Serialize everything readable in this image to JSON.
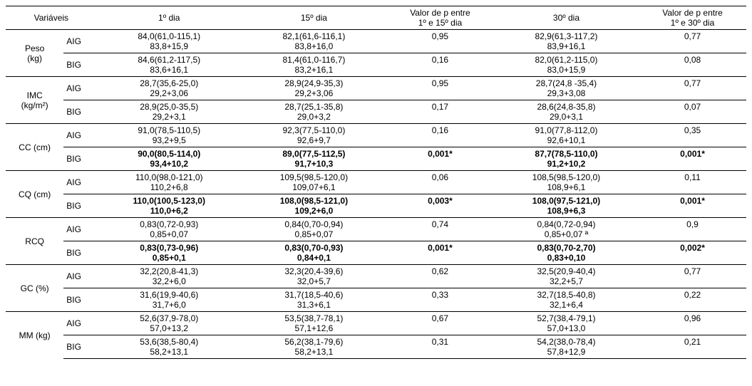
{
  "headers": {
    "variaveis": "Variáveis",
    "dia1": "1º dia",
    "dia15": "15º dia",
    "p1_15_l1": "Valor de p entre",
    "p1_15_l2": "1º e 15º dia",
    "dia30": "30º dia",
    "p1_30_l1": "Valor de p entre",
    "p1_30_l2": "1º e 30º dia"
  },
  "vars": [
    {
      "label_l1": "Peso",
      "label_l2": "(kg)",
      "rows": [
        {
          "group": "AIG",
          "d1_l1": "84,0(61,0-115,1)",
          "d1_l2": "83,8+15,9",
          "d15_l1": "82,1(61,6-116,1)",
          "d15_l2": "83,8+16,0",
          "p15": "0,95",
          "d30_l1": "82,9(61,3-117,2)",
          "d30_l2": "83,9+16,1",
          "p30": "0,77",
          "bold": false
        },
        {
          "group": "BIG",
          "d1_l1": "84,6(61,2-117,5)",
          "d1_l2": "83,6+16,1",
          "d15_l1": "81,4(61,0-116,7)",
          "d15_l2": "83,2+16,1",
          "p15": "0,16",
          "d30_l1": "82,0(61,2-115,0)",
          "d30_l2": "83,0+15,9",
          "p30": "0,08",
          "bold": false
        }
      ]
    },
    {
      "label_l1": "IMC",
      "label_l2": "(kg/m²)",
      "rows": [
        {
          "group": "AIG",
          "d1_l1": "28,7(35,6-25,0)",
          "d1_l2": "29,2+3,06",
          "d15_l1": "28,9(24,9-35,3)",
          "d15_l2": "29,2+3,06",
          "p15": "0,95",
          "d30_l1": "28,7(24,8 -35,4)",
          "d30_l2": "29,3+3,08",
          "p30": "0,77",
          "bold": false
        },
        {
          "group": "BIG",
          "d1_l1": "28,9(25,0-35,5)",
          "d1_l2": "29,2+3,1",
          "d15_l1": "28,7(25,1-35,8)",
          "d15_l2": "29,0+3,2",
          "p15": "0,17",
          "d30_l1": "28,6(24,8-35,8)",
          "d30_l2": "29,0+3,1",
          "p30": "0,07",
          "bold": false
        }
      ]
    },
    {
      "label_l1": "CC (cm)",
      "label_l2": "",
      "rows": [
        {
          "group": "AIG",
          "d1_l1": "91,0(78,5-110,5)",
          "d1_l2": "93,2+9,5",
          "d15_l1": "92,3(77,5-110,0)",
          "d15_l2": "92,6+9,7",
          "p15": "0,16",
          "d30_l1": "91,0(77,8-112,0)",
          "d30_l2": "92,6+10,1",
          "p30": "0,35",
          "bold": false
        },
        {
          "group": "BIG",
          "d1_l1": "90,0(80,5-114,0)",
          "d1_l2": "93,4+10,2",
          "d15_l1": "89,0(77,5-112,5)",
          "d15_l2": "91,7+10,3",
          "p15": "0,001*",
          "d30_l1": "87,7(78,5-110,0)",
          "d30_l2": "91,2+10,2",
          "p30": "0,001*",
          "bold": true
        }
      ]
    },
    {
      "label_l1": "CQ (cm)",
      "label_l2": "",
      "rows": [
        {
          "group": "AIG",
          "d1_l1": "110,0(98,0-121,0)",
          "d1_l2": "110,2+6,8",
          "d15_l1": "109,5(98,5-120,0)",
          "d15_l2": "109,07+6,1",
          "p15": "0,06",
          "d30_l1": "108,5(98,5-120,0)",
          "d30_l2": "108,9+6,1",
          "p30": "0,11",
          "bold": false
        },
        {
          "group": "BIG",
          "d1_l1": "110,0(100,5-123,0)",
          "d1_l2": "110,0+6,2",
          "d15_l1": "108,0(98,5-121,0)",
          "d15_l2": "109,2+6,0",
          "p15": "0,003*",
          "d30_l1": "108,0(97,5-121,0)",
          "d30_l2": "108,9+6,3",
          "p30": "0,001*",
          "bold": true
        }
      ]
    },
    {
      "label_l1": "RCQ",
      "label_l2": "",
      "rows": [
        {
          "group": "AIG",
          "d1_l1": "0,83(0,72-0,93)",
          "d1_l2": "0,85+0,07",
          "d15_l1": "0,84(0,70-0,94)",
          "d15_l2": "0,85+0,07",
          "p15": "0,74",
          "d30_l1": "0,84(0,72-0,94)",
          "d30_l2": "0,85+0,07 ª",
          "p30": "0,9",
          "bold": false
        },
        {
          "group": "BIG",
          "d1_l1": "0,83(0,73-0,96)",
          "d1_l2": "0,85+0,1",
          "d15_l1": "0,83(0,70-0,93)",
          "d15_l2": "0,84+0,1",
          "p15": "0,001*",
          "d30_l1": "0,83(0,70-2,70)",
          "d30_l2": "0,83+0,10",
          "p30": "0,002*",
          "bold": true
        }
      ]
    },
    {
      "label_l1": "GC (%)",
      "label_l2": "",
      "rows": [
        {
          "group": "AIG",
          "d1_l1": "32,2(20,8-41,3)",
          "d1_l2": "32,2+6,0",
          "d15_l1": "32,3(20,4-39,6)",
          "d15_l2": "32,0+5,7",
          "p15": "0,62",
          "d30_l1": "32,5(20,9-40,4)",
          "d30_l2": "32,2+5,7",
          "p30": "0,77",
          "bold": false
        },
        {
          "group": "BIG",
          "d1_l1": "31,6(19,9-40,6)",
          "d1_l2": "31,7+6,0",
          "d15_l1": "31,7(18,5-40,6)",
          "d15_l2": "31,3+6,1",
          "p15": "0,33",
          "d30_l1": "32,7(18,5-40,8)",
          "d30_l2": "32,1+6,4",
          "p30": "0,22",
          "bold": false
        }
      ]
    },
    {
      "label_l1": "MM (kg)",
      "label_l2": "",
      "rows": [
        {
          "group": "AIG",
          "d1_l1": "52,6(37,9-78,0)",
          "d1_l2": "57,0+13,2",
          "d15_l1": "53,5(38,7-78,1)",
          "d15_l2": "57,1+12,6",
          "p15": "0,67",
          "d30_l1": "52,7(38,4-79,1)",
          "d30_l2": "57,0+13,0",
          "p30": "0,96",
          "bold": false
        },
        {
          "group": "BIG",
          "d1_l1": "53,6(38,5-80,4)",
          "d1_l2": "58,2+13,1",
          "d15_l1": "56,2(38,1-79,6)",
          "d15_l2": "58,2+13,1",
          "p15": "0,31",
          "d30_l1": "54,2(38,0-78,4)",
          "d30_l2": "57,8+12,9",
          "p30": "0,21",
          "bold": false
        }
      ]
    }
  ]
}
